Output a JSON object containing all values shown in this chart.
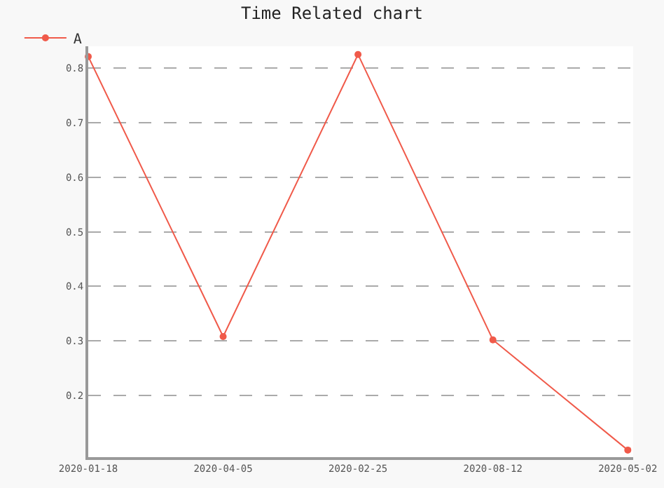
{
  "chart_data": {
    "type": "line",
    "title": "Time Related chart",
    "categories": [
      "2020-01-18",
      "2020-04-05",
      "2020-02-25",
      "2020-08-12",
      "2020-05-02"
    ],
    "series": [
      {
        "name": "A",
        "color": "#f05a4a",
        "values": [
          0.821,
          0.308,
          0.825,
          0.302,
          0.1
        ]
      }
    ],
    "ylim": [
      0.087,
      0.84
    ],
    "yticks": [
      {
        "value": 0.2,
        "label": "0.2"
      },
      {
        "value": 0.3,
        "label": "0.3"
      },
      {
        "value": 0.4,
        "label": "0.4"
      },
      {
        "value": 0.5,
        "label": "0.5"
      },
      {
        "value": 0.6,
        "label": "0.6"
      },
      {
        "value": 0.7,
        "label": "0.7"
      },
      {
        "value": 0.8,
        "label": "0.8"
      }
    ],
    "grid": "y",
    "legend": "top left",
    "marker": "circle",
    "line_style": "solid"
  }
}
